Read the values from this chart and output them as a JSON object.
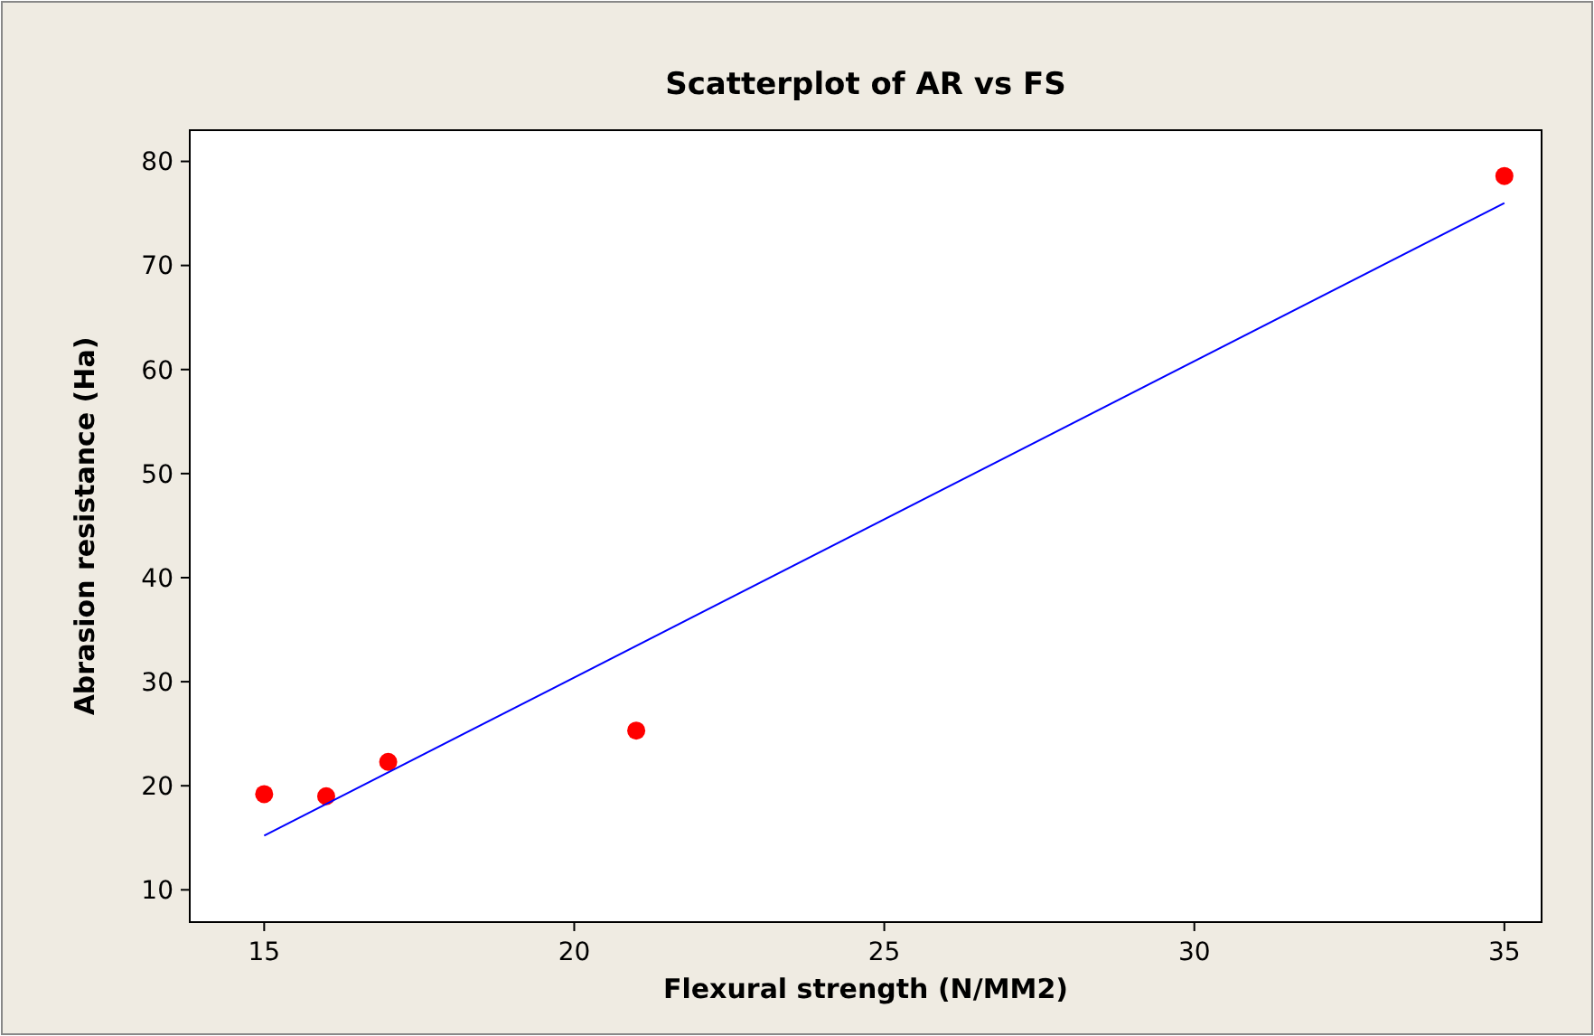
{
  "chart_data": {
    "type": "scatter",
    "title": "Scatterplot of AR vs FS",
    "xlabel": "Flexural strength (N/MM2)",
    "ylabel": "Abrasion resistance (Ha)",
    "x": [
      15,
      16,
      17,
      21,
      35
    ],
    "series": [
      {
        "color": "#ff0000",
        "values": [
          19.2,
          19.0,
          22.3,
          25.3,
          78.6
        ]
      },
      {
        "type": "line",
        "marker": "none",
        "color": "#0000ff",
        "x": [
          15,
          35
        ],
        "values": [
          15.2,
          76.0
        ]
      }
    ],
    "xlim": [
      13.8,
      35.6
    ],
    "ylim": [
      6.9,
      83
    ],
    "xticks": [
      15,
      20,
      25,
      30,
      35
    ],
    "yticks": [
      10,
      20,
      30,
      40,
      50,
      60,
      70,
      80
    ],
    "marker": "circle",
    "grid": false
  }
}
